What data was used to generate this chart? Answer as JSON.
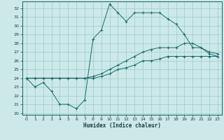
{
  "title": "",
  "xlabel": "Humidex (Indice chaleur)",
  "xlim": [
    -0.5,
    23.5
  ],
  "ylim": [
    19.8,
    32.8
  ],
  "yticks": [
    20,
    21,
    22,
    23,
    24,
    25,
    26,
    27,
    28,
    29,
    30,
    31,
    32
  ],
  "xticks": [
    0,
    1,
    2,
    3,
    4,
    5,
    6,
    7,
    8,
    9,
    10,
    11,
    12,
    13,
    14,
    15,
    16,
    17,
    18,
    19,
    20,
    21,
    22,
    23
  ],
  "bg_color": "#cce8e8",
  "grid_color": "#99cccc",
  "line_color": "#1a6b6b",
  "line1_y": [
    24.0,
    23.0,
    23.5,
    22.5,
    21.0,
    21.0,
    20.5,
    21.5,
    28.5,
    29.5,
    32.5,
    31.5,
    30.5,
    31.5,
    31.5,
    31.5,
    31.5,
    30.8,
    30.2,
    29.0,
    27.5,
    27.5,
    26.8,
    26.5
  ],
  "line2_y": [
    24.0,
    24.0,
    24.0,
    24.0,
    24.0,
    24.0,
    24.0,
    24.0,
    24.2,
    24.5,
    25.0,
    25.5,
    26.0,
    26.5,
    27.0,
    27.3,
    27.5,
    27.5,
    27.5,
    28.0,
    28.0,
    27.5,
    27.0,
    26.8
  ],
  "line3_y": [
    24.0,
    24.0,
    24.0,
    24.0,
    24.0,
    24.0,
    24.0,
    24.0,
    24.0,
    24.2,
    24.5,
    25.0,
    25.2,
    25.5,
    26.0,
    26.0,
    26.2,
    26.5,
    26.5,
    26.5,
    26.5,
    26.5,
    26.5,
    26.5
  ]
}
